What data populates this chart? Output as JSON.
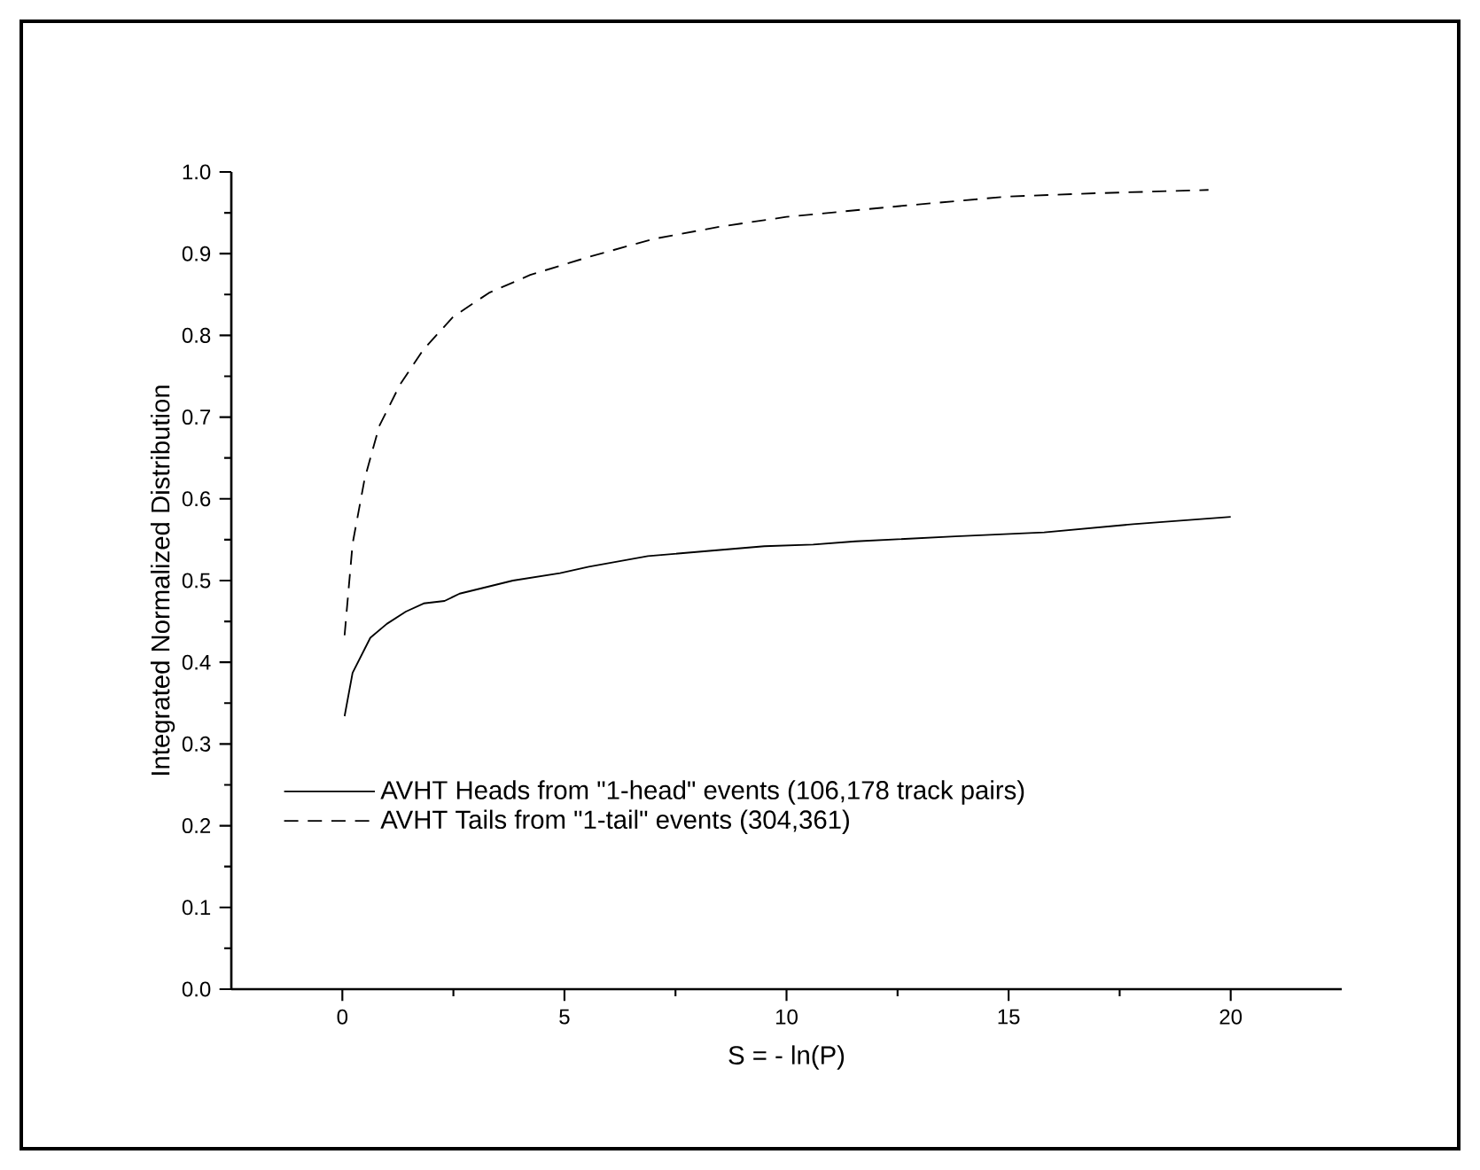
{
  "chart_data": {
    "type": "line",
    "xlabel": "S = - ln(P)",
    "ylabel": "Integrated Normalized Distribution",
    "xlim": [
      -2.5,
      22.5
    ],
    "ylim": [
      0,
      1.0
    ],
    "xticks": [
      0,
      5,
      10,
      15,
      20
    ],
    "yticks": [
      {
        "value": 0,
        "label": "0.0"
      },
      0.1,
      0.2,
      0.3,
      0.4,
      0.5,
      0.6,
      0.7,
      0.8,
      0.9,
      {
        "value": 1.0,
        "label": "1.0"
      }
    ],
    "grid": false,
    "legend": "bottom left",
    "marker": "none",
    "series": [
      {
        "name": "AVHT Heads from \"1-head\" events (106,178 track pairs)",
        "color": "#000000",
        "line_style": "solid",
        "x": [
          0.05,
          0.23,
          0.63,
          1.0,
          1.43,
          1.83,
          2.3,
          2.64,
          3.17,
          3.84,
          4.9,
          5.55,
          6.88,
          8.2,
          9.5,
          10.6,
          11.55,
          13.8,
          15.8,
          17.8,
          20.0
        ],
        "values": [
          0.334,
          0.387,
          0.43,
          0.447,
          0.462,
          0.472,
          0.475,
          0.484,
          0.491,
          0.5,
          0.509,
          0.517,
          0.53,
          0.536,
          0.542,
          0.544,
          0.548,
          0.554,
          0.559,
          0.569,
          0.578
        ]
      },
      {
        "name": "AVHT Tails from \"1-tail\" events (304,361)",
        "color": "#000000",
        "line_style": "dashed",
        "x": [
          0.05,
          0.23,
          0.5,
          0.83,
          1.3,
          1.83,
          2.5,
          3.3,
          4.23,
          5.55,
          7.0,
          8.5,
          10.0,
          12.5,
          15.0,
          17.0,
          19.5
        ],
        "values": [
          0.433,
          0.545,
          0.624,
          0.689,
          0.74,
          0.783,
          0.823,
          0.852,
          0.874,
          0.896,
          0.918,
          0.933,
          0.945,
          0.958,
          0.97,
          0.974,
          0.978
        ]
      }
    ]
  }
}
